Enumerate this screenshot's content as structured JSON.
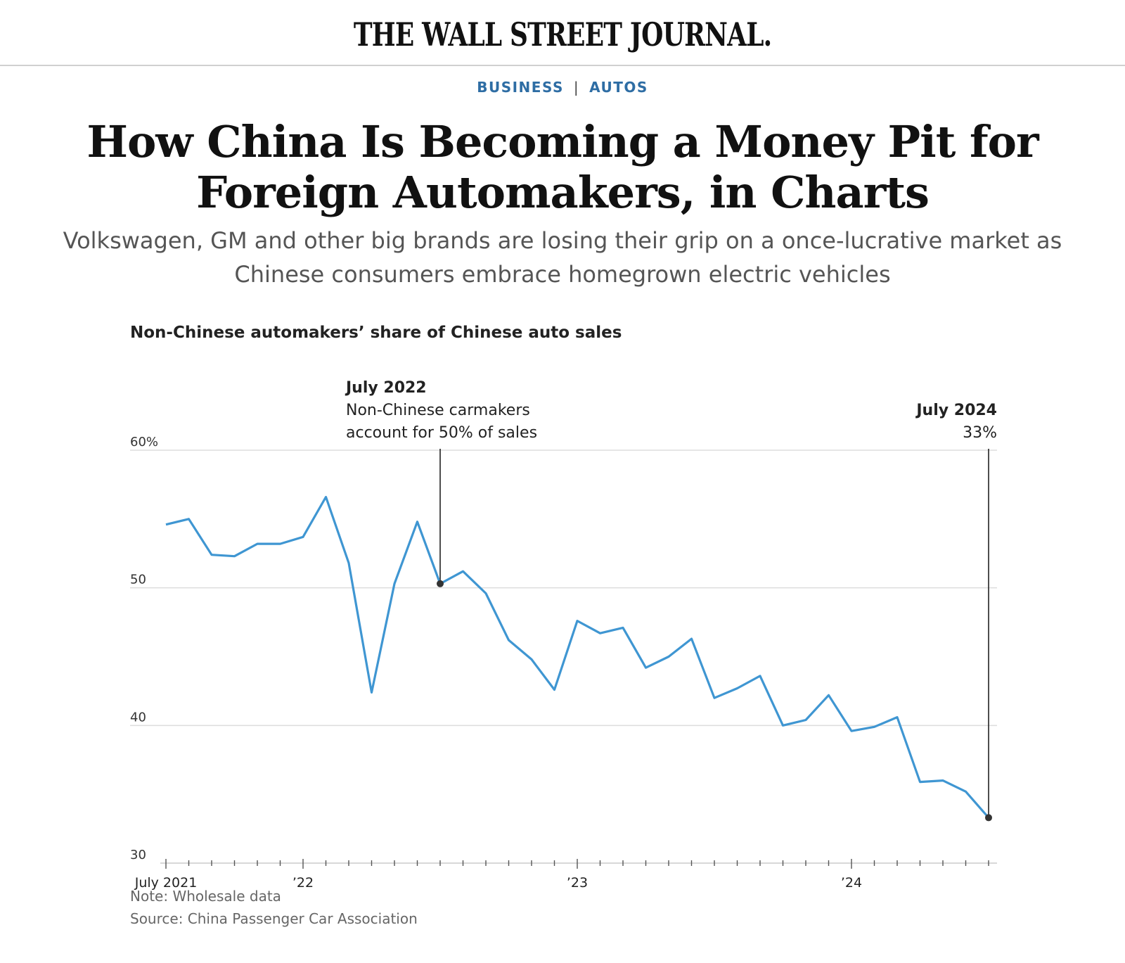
{
  "masthead": "THE WALL STREET JOURNAL.",
  "section": {
    "primary": "BUSINESS",
    "separator": "|",
    "secondary": "AUTOS"
  },
  "headline": "How China Is Becoming a Money Pit for Foreign Automakers, in Charts",
  "dek": "Volkswagen, GM and other big brands are losing their grip on a once-lucrative market as Chinese consumers embrace homegrown electric vehicles",
  "chart_title": "Non-Chinese automakers’ share of Chinese auto sales",
  "note": "Note: Wholesale data",
  "source": "Source: China Passenger Car Association",
  "colors": {
    "line": "#3f96d2",
    "section": "#2e6da4",
    "grid": "#dddddd",
    "annotation": "#222222"
  },
  "chart_data": {
    "type": "line",
    "title": "Non-Chinese automakers’ share of Chinese auto sales",
    "ylim": [
      30,
      60
    ],
    "yticks": [
      {
        "value": 60,
        "label": "60%"
      },
      {
        "value": 50,
        "label": "50"
      },
      {
        "value": 40,
        "label": "40"
      },
      {
        "value": 30,
        "label": "30"
      }
    ],
    "xticks": [
      {
        "index": 0,
        "label": "July 2021"
      },
      {
        "index": 6,
        "label": "’22"
      },
      {
        "index": 18,
        "label": "’23"
      },
      {
        "index": 30,
        "label": "’24"
      }
    ],
    "x": [
      "2021-07",
      "2021-08",
      "2021-09",
      "2021-10",
      "2021-11",
      "2021-12",
      "2022-01",
      "2022-02",
      "2022-03",
      "2022-04",
      "2022-05",
      "2022-06",
      "2022-07",
      "2022-08",
      "2022-09",
      "2022-10",
      "2022-11",
      "2022-12",
      "2023-01",
      "2023-02",
      "2023-03",
      "2023-04",
      "2023-05",
      "2023-06",
      "2023-07",
      "2023-08",
      "2023-09",
      "2023-10",
      "2023-11",
      "2023-12",
      "2024-01",
      "2024-02",
      "2024-03",
      "2024-04",
      "2024-05",
      "2024-06",
      "2024-07"
    ],
    "values": [
      54.6,
      55.0,
      52.4,
      52.3,
      53.2,
      53.2,
      53.7,
      56.6,
      51.8,
      42.4,
      50.3,
      54.8,
      50.3,
      51.2,
      49.6,
      46.2,
      44.8,
      42.6,
      47.6,
      46.7,
      47.1,
      44.2,
      45.0,
      46.3,
      42.0,
      42.7,
      43.6,
      40.0,
      40.4,
      42.2,
      39.6,
      39.9,
      40.6,
      35.9,
      36.0,
      35.2,
      33.3
    ],
    "annotations": [
      {
        "index": 12,
        "label": "July 2022",
        "text": [
          "Non-Chinese carmakers",
          "account for 50% of sales"
        ],
        "align": "left"
      },
      {
        "index": 36,
        "label": "July 2024",
        "text": [
          "33%"
        ],
        "align": "right"
      }
    ],
    "grid": true
  }
}
